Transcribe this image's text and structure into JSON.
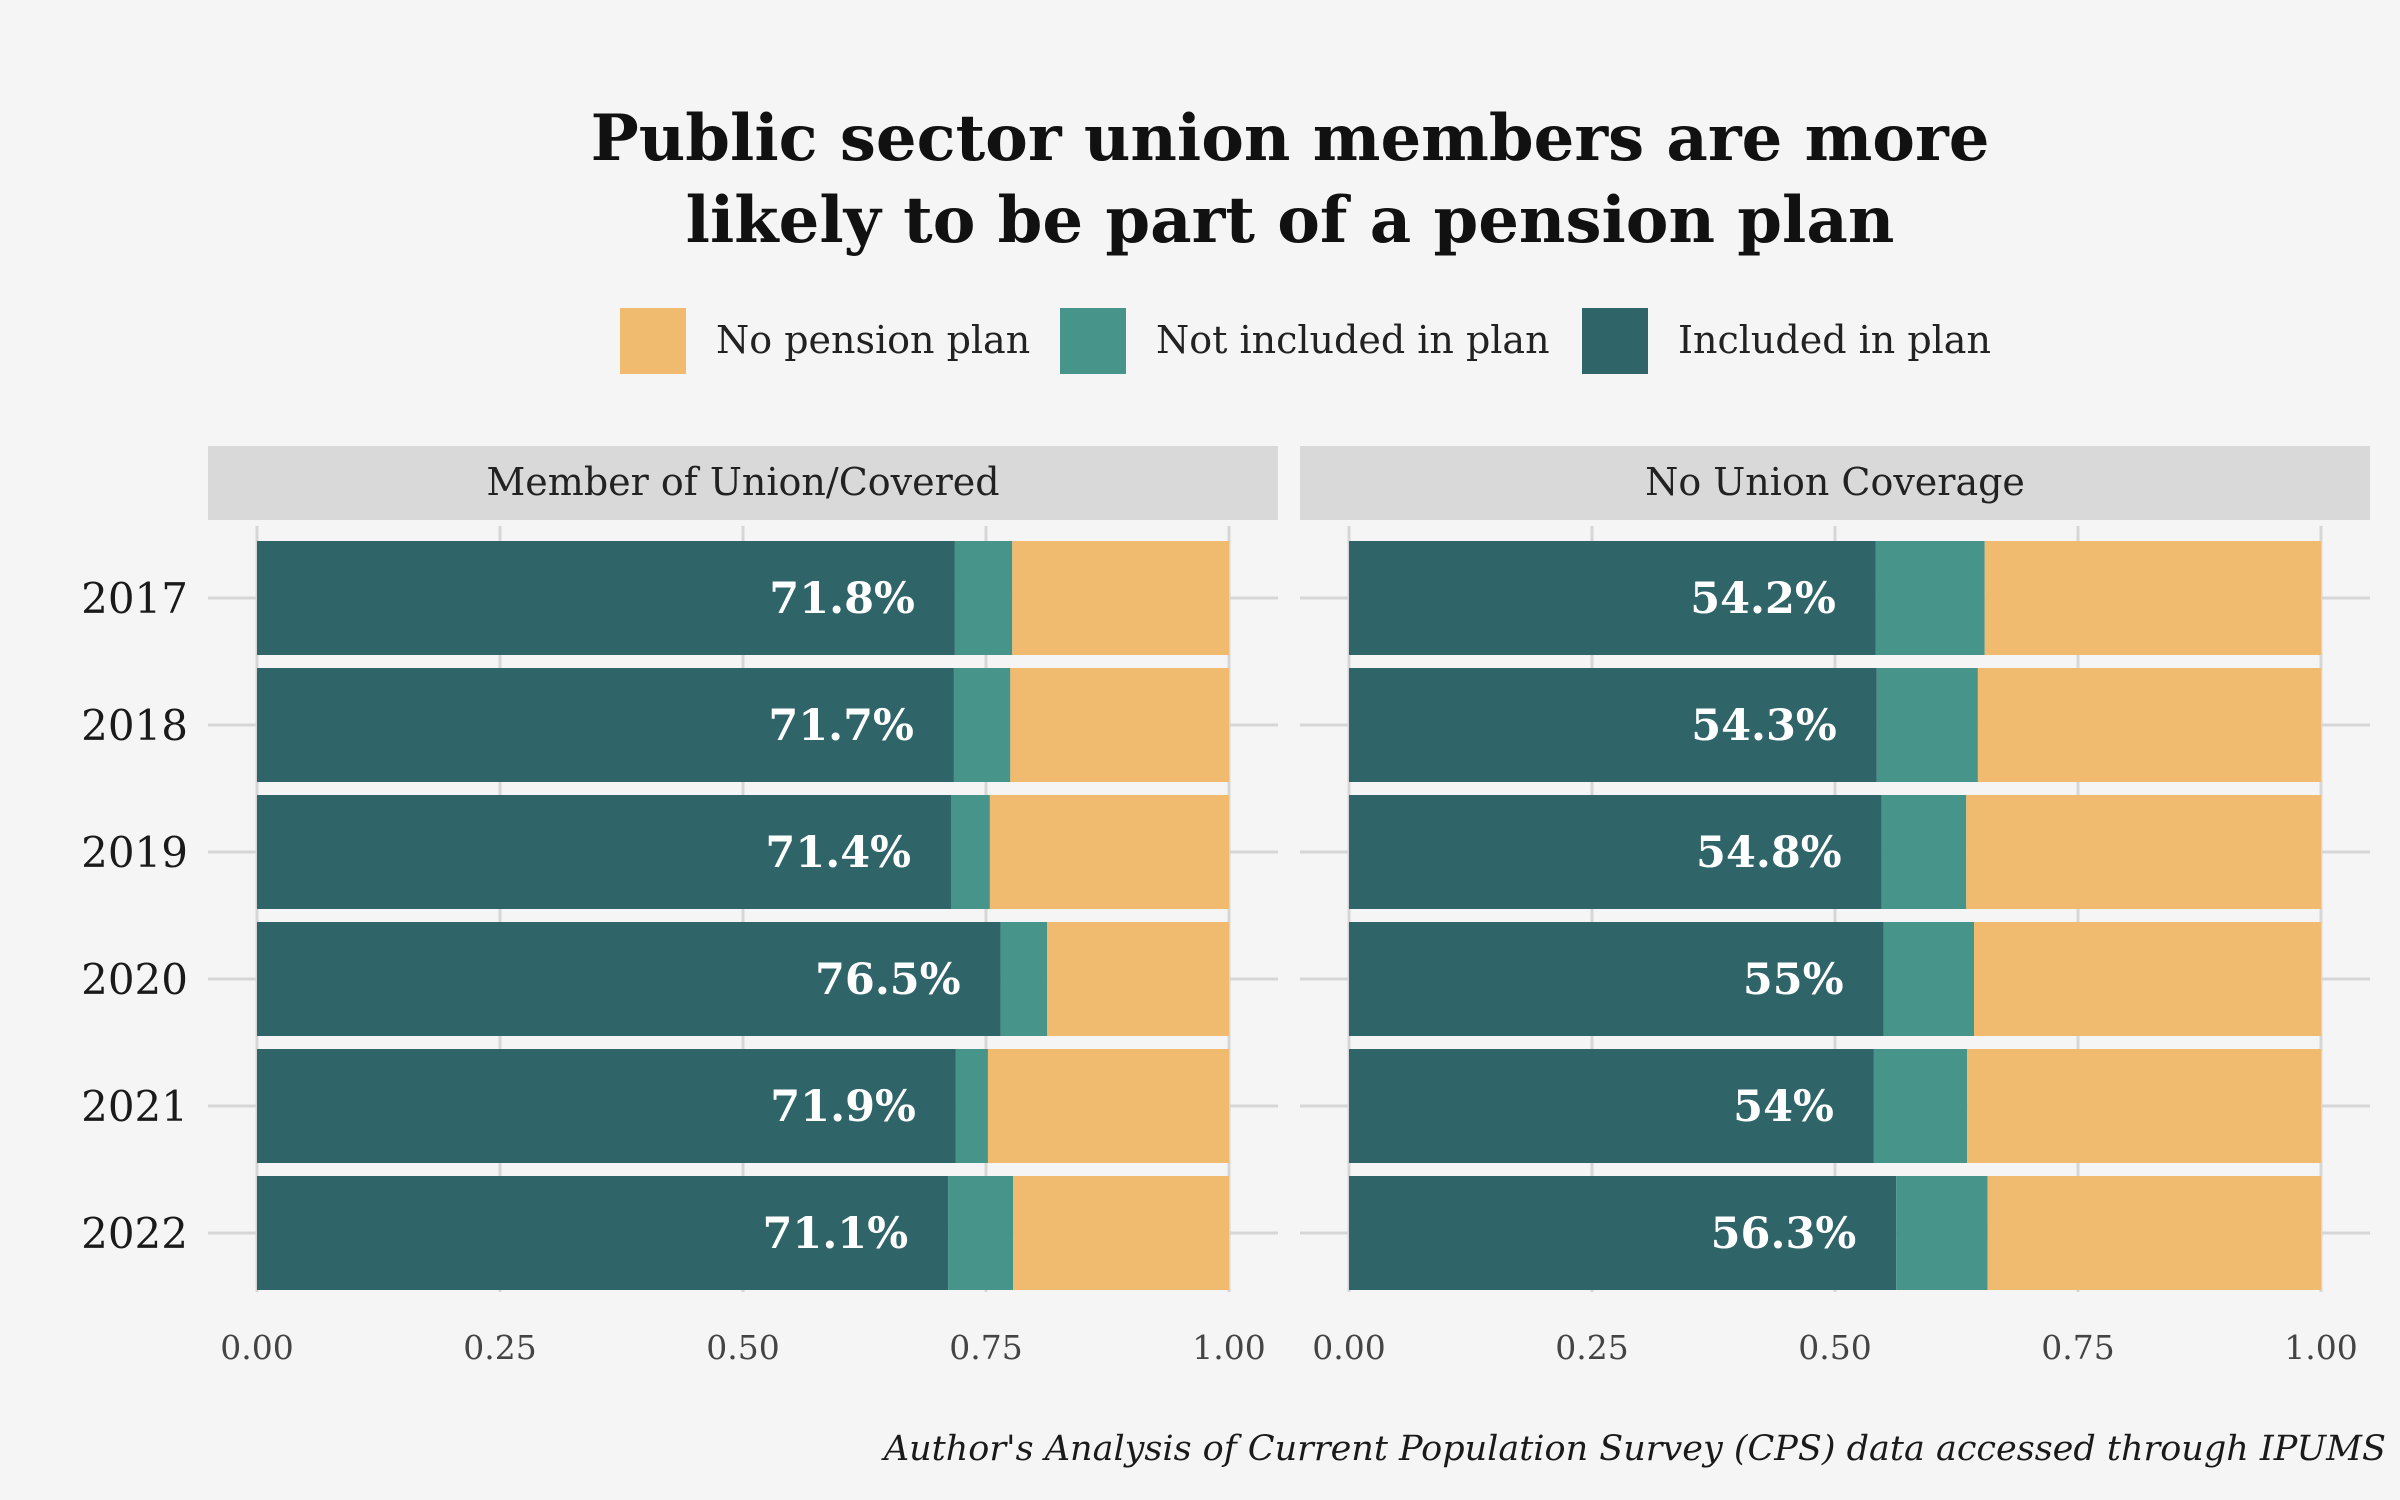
{
  "chart_data": {
    "type": "bar",
    "orientation": "horizontal",
    "stacked": true,
    "title_lines": [
      "Public sector union members are more",
      "likely to be part of a pension plan"
    ],
    "legend": [
      {
        "name": "No pension plan",
        "color": "#f0bb6e"
      },
      {
        "name": "Not included in plan",
        "color": "#46948a"
      },
      {
        "name": "Included in plan",
        "color": "#2f6468"
      }
    ],
    "categories": [
      "2017",
      "2018",
      "2019",
      "2020",
      "2021",
      "2022"
    ],
    "xlim": [
      0,
      1
    ],
    "x_ticks": [
      "0.00",
      "0.25",
      "0.50",
      "0.75",
      "1.00"
    ],
    "x_tick_values": [
      0,
      0.25,
      0.5,
      0.75,
      1
    ],
    "panels": [
      {
        "name": "Member of Union/Covered",
        "series": [
          {
            "name": "Included in plan",
            "values": [
              0.718,
              0.717,
              0.714,
              0.765,
              0.719,
              0.711
            ]
          },
          {
            "name": "Not included in plan",
            "values": [
              0.059,
              0.058,
              0.04,
              0.048,
              0.033,
              0.067
            ]
          },
          {
            "name": "No pension plan",
            "values": [
              0.223,
              0.225,
              0.246,
              0.187,
              0.248,
              0.222
            ]
          }
        ],
        "labels": [
          "71.8%",
          "71.7%",
          "71.4%",
          "76.5%",
          "71.9%",
          "71.1%"
        ]
      },
      {
        "name": "No Union Coverage",
        "series": [
          {
            "name": "Included in plan",
            "values": [
              0.542,
              0.543,
              0.548,
              0.55,
              0.54,
              0.563
            ]
          },
          {
            "name": "Not included in plan",
            "values": [
              0.112,
              0.104,
              0.087,
              0.093,
              0.096,
              0.094
            ]
          },
          {
            "name": "No pension plan",
            "values": [
              0.346,
              0.353,
              0.365,
              0.357,
              0.364,
              0.343
            ]
          }
        ],
        "labels": [
          "54.2%",
          "54.3%",
          "54.8%",
          "55%",
          "54%",
          "56.3%"
        ]
      }
    ],
    "caption": "Author's Analysis of Current Population Survey (CPS) data accessed through IPUMS",
    "grid": true
  }
}
